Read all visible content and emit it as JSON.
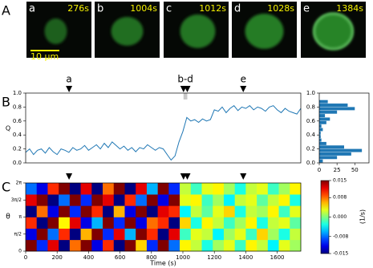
{
  "panel_labels": [
    "A",
    "B",
    "C"
  ],
  "images": [
    {
      "letter": "a",
      "time": "276s"
    },
    {
      "letter": "b",
      "time": "1004s"
    },
    {
      "letter": "c",
      "time": "1012s"
    },
    {
      "letter": "d",
      "time": "1028s"
    },
    {
      "letter": "e",
      "time": "1384s"
    }
  ],
  "scale_bar": "10 μm",
  "chart_data": [
    {
      "type": "line",
      "ylabel": "Q",
      "color": "#1f77b4",
      "x": [
        0,
        25,
        50,
        75,
        100,
        125,
        150,
        175,
        200,
        225,
        250,
        275,
        300,
        325,
        350,
        375,
        400,
        425,
        450,
        475,
        500,
        525,
        550,
        575,
        600,
        625,
        650,
        675,
        700,
        725,
        750,
        775,
        800,
        825,
        850,
        875,
        900,
        925,
        950,
        975,
        1000,
        1025,
        1050,
        1075,
        1100,
        1125,
        1150,
        1175,
        1200,
        1225,
        1250,
        1275,
        1300,
        1325,
        1350,
        1375,
        1400,
        1425,
        1450,
        1475,
        1500,
        1525,
        1550,
        1575,
        1600,
        1625,
        1650,
        1675,
        1700,
        1725,
        1750
      ],
      "values": [
        0.15,
        0.2,
        0.12,
        0.18,
        0.2,
        0.14,
        0.22,
        0.16,
        0.12,
        0.2,
        0.18,
        0.15,
        0.22,
        0.18,
        0.2,
        0.25,
        0.18,
        0.22,
        0.26,
        0.2,
        0.28,
        0.22,
        0.3,
        0.25,
        0.2,
        0.24,
        0.18,
        0.22,
        0.16,
        0.22,
        0.2,
        0.26,
        0.22,
        0.18,
        0.22,
        0.2,
        0.12,
        0.04,
        0.1,
        0.3,
        0.45,
        0.65,
        0.6,
        0.62,
        0.58,
        0.63,
        0.6,
        0.62,
        0.76,
        0.74,
        0.8,
        0.72,
        0.78,
        0.82,
        0.75,
        0.8,
        0.78,
        0.82,
        0.76,
        0.8,
        0.78,
        0.74,
        0.8,
        0.82,
        0.76,
        0.72,
        0.78,
        0.74,
        0.72,
        0.7,
        0.78
      ],
      "xlim": [
        0,
        1750
      ],
      "ylim": [
        0,
        1
      ],
      "yticks": [
        {
          "value": 0,
          "label": "0.0"
        },
        0.2,
        0.4,
        0.6,
        0.8,
        {
          "value": 1,
          "label": "1.0"
        }
      ],
      "triangles": [
        276,
        1004,
        1028,
        1384
      ],
      "marker_labels": [
        {
          "x": 276,
          "label": "a"
        },
        {
          "x": 1016,
          "label": "b-d"
        },
        {
          "x": 1384,
          "label": "e"
        }
      ],
      "shade": [
        1004,
        1028
      ]
    },
    {
      "type": "histogram",
      "orientation": "horizontal",
      "color": "#1f77b4",
      "bins": [
        0,
        0.05,
        0.1,
        0.15,
        0.2,
        0.25,
        0.3,
        0.35,
        0.4,
        0.45,
        0.5,
        0.55,
        0.6,
        0.65,
        0.7,
        0.75,
        0.8,
        0.85,
        0.9,
        0.95,
        1
      ],
      "counts": [
        5,
        25,
        45,
        60,
        35,
        10,
        3,
        2,
        2,
        5,
        3,
        10,
        15,
        8,
        25,
        50,
        40,
        12,
        0,
        0
      ],
      "xlim": [
        0,
        70
      ],
      "xticks": [
        0,
        25,
        50
      ],
      "ylim": [
        0,
        1
      ],
      "yticks": [
        {
          "value": 0,
          "label": "0.0"
        },
        0.2,
        0.4,
        0.6,
        0.8,
        {
          "value": 1,
          "label": "1.0"
        }
      ]
    },
    {
      "type": "heatmap",
      "xlabel": "Time (s)",
      "ylabel": "θ",
      "xbins": [
        0,
        70,
        140,
        210,
        280,
        350,
        420,
        490,
        560,
        630,
        700,
        770,
        840,
        910,
        980,
        1050,
        1120,
        1190,
        1260,
        1330,
        1400,
        1470,
        1540,
        1610,
        1680,
        1750
      ],
      "ybins": [
        0,
        1.0472,
        2.0944,
        3.1416,
        4.1888,
        5.236,
        6.2832
      ],
      "z": [
        [
          0.015,
          -0.01,
          0.012,
          -0.015,
          0.008,
          0.015,
          -0.012,
          0.01,
          -0.015,
          0.015,
          0.005,
          -0.01,
          0.015,
          -0.008,
          0.004,
          0.002,
          -0.003,
          0.001,
          0.003,
          -0.002,
          0.004,
          0.002,
          -0.004,
          0.003,
          0.001
        ],
        [
          -0.012,
          0.015,
          -0.008,
          0.01,
          -0.015,
          0.006,
          0.015,
          -0.01,
          0.012,
          -0.006,
          0.015,
          0.01,
          -0.015,
          0.012,
          -0.002,
          0.003,
          0.002,
          -0.004,
          0.001,
          0.003,
          -0.002,
          0.005,
          0.001,
          -0.003,
          0.002
        ],
        [
          0.01,
          -0.015,
          0.015,
          0.004,
          0.012,
          -0.012,
          -0.006,
          0.015,
          -0.01,
          0.015,
          -0.012,
          0.008,
          0.01,
          -0.015,
          0.005,
          -0.003,
          0.004,
          0.002,
          -0.002,
          0.001,
          0.004,
          -0.003,
          0.002,
          0.003,
          -0.001
        ],
        [
          -0.015,
          0.008,
          -0.012,
          0.015,
          -0.01,
          0.015,
          0.01,
          -0.015,
          0.006,
          -0.012,
          0.015,
          -0.015,
          0.012,
          0.01,
          -0.004,
          0.002,
          -0.001,
          0.003,
          0.005,
          -0.003,
          0.002,
          0.001,
          0.004,
          -0.002,
          0.003
        ],
        [
          0.012,
          0.015,
          -0.015,
          -0.008,
          0.015,
          -0.01,
          0.015,
          0.012,
          -0.015,
          0.01,
          -0.008,
          0.015,
          -0.012,
          0.015,
          0.003,
          0.004,
          -0.002,
          0.001,
          -0.004,
          0.002,
          0.003,
          -0.001,
          0.002,
          0.004,
          -0.003
        ],
        [
          -0.008,
          -0.012,
          0.01,
          0.015,
          -0.015,
          0.012,
          -0.015,
          0.008,
          0.015,
          -0.015,
          0.012,
          -0.006,
          0.015,
          -0.01,
          0.002,
          -0.002,
          0.003,
          0.004,
          0.001,
          -0.003,
          0.002,
          0.003,
          -0.002,
          0.001,
          0.004
        ]
      ],
      "xlim": [
        0,
        1750
      ],
      "ylim": [
        0,
        6.2832
      ],
      "xticks": [
        0,
        200,
        400,
        600,
        800,
        1000,
        1200,
        1400,
        1600
      ],
      "yticks": [
        0,
        {
          "value": 1.5708,
          "label": "π/2"
        },
        {
          "value": 3.1416,
          "label": "π"
        },
        {
          "value": 4.7124,
          "label": "3π/2"
        },
        {
          "value": 6.2832,
          "label": "2π"
        }
      ],
      "triangles": [
        276,
        1004,
        1028,
        1384
      ],
      "clim": [
        -0.015,
        0.015
      ],
      "cticks": [
        0.015,
        0.008,
        {
          "value": 0,
          "label": "0.000"
        },
        -0.008,
        -0.015
      ],
      "colorbar_label": "(1/s)"
    }
  ]
}
